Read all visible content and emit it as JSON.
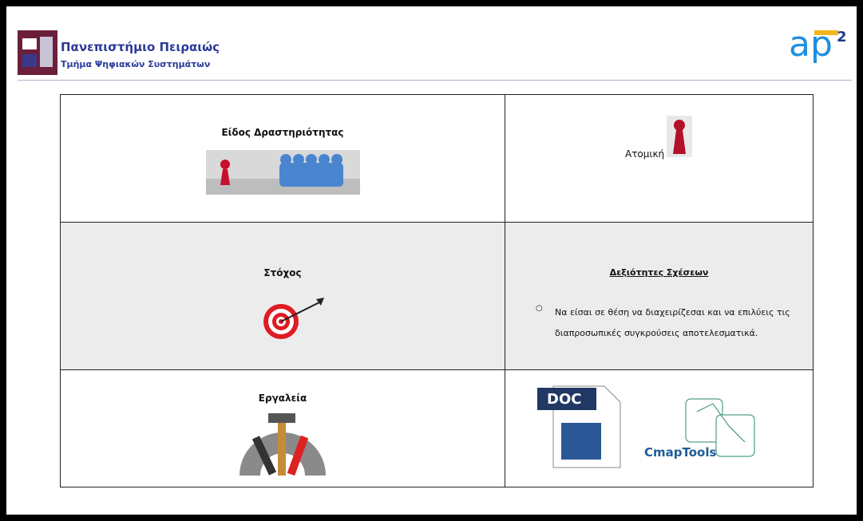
{
  "header": {
    "university": "Πανεπιστήμιο Πειραιώς",
    "department": "Τμήμα Ψηφιακών Συστημάτων",
    "logo": {
      "text": "ap",
      "superscript": "2"
    }
  },
  "table": {
    "rows": [
      [
        "Είδος Δραστηριότητας",
        "Ατομική"
      ],
      [
        "Στόχος",
        {
          "heading": "Δεξιότητες Σχέσεων",
          "bullets": [
            "Να είσαι σε θέση να διαχειρίζεσαι και να επιλύεις τις διαπροσωπικές συγκρούσεις αποτελεσματικά."
          ]
        }
      ],
      [
        "Εργαλεία",
        {
          "icons": [
            "DOC",
            "CmapTools"
          ]
        }
      ]
    ]
  }
}
